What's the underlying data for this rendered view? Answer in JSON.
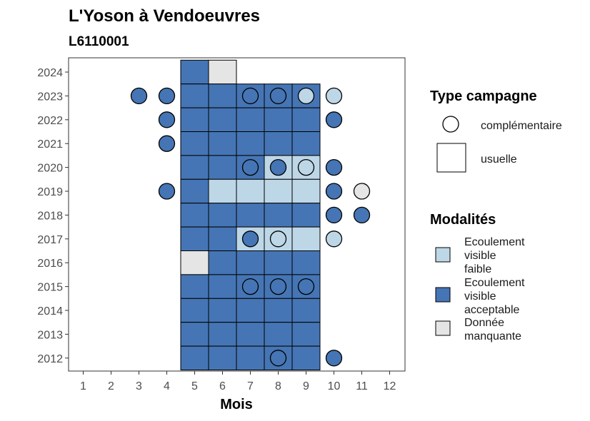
{
  "chart_data": {
    "type": "heatmap",
    "title": "L'Yoson à Vendoeuvres",
    "subtitle": "L6110001",
    "xlabel": "Mois",
    "ylabel": "",
    "x_ticks": [
      "1",
      "2",
      "3",
      "4",
      "5",
      "6",
      "7",
      "8",
      "9",
      "10",
      "11",
      "12"
    ],
    "y_ticks": [
      "2012",
      "2013",
      "2014",
      "2015",
      "2016",
      "2017",
      "2018",
      "2019",
      "2020",
      "2021",
      "2022",
      "2023",
      "2024"
    ],
    "colors": {
      "acceptable": "#4575b4",
      "faible": "#bdd7e7",
      "manquante": "#e5e5e5"
    },
    "legend_type": {
      "title": "Type campagne",
      "items": [
        {
          "shape": "circle",
          "label": "complémentaire"
        },
        {
          "shape": "square",
          "label": "usuelle"
        }
      ]
    },
    "legend_modalites": {
      "title": "Modalités",
      "items": [
        {
          "key": "faible",
          "label": "Ecoulement visible faible"
        },
        {
          "key": "acceptable",
          "label": "Ecoulement visible acceptable"
        },
        {
          "key": "manquante",
          "label": "Donnée manquante"
        }
      ]
    },
    "usuelle": [
      {
        "year": 2024,
        "month": 5,
        "modalite": "acceptable"
      },
      {
        "year": 2024,
        "month": 6,
        "modalite": "manquante"
      },
      {
        "year": 2023,
        "month": 5,
        "modalite": "acceptable"
      },
      {
        "year": 2023,
        "month": 6,
        "modalite": "acceptable"
      },
      {
        "year": 2023,
        "month": 7,
        "modalite": "acceptable"
      },
      {
        "year": 2023,
        "month": 8,
        "modalite": "acceptable"
      },
      {
        "year": 2023,
        "month": 9,
        "modalite": "acceptable"
      },
      {
        "year": 2022,
        "month": 5,
        "modalite": "acceptable"
      },
      {
        "year": 2022,
        "month": 6,
        "modalite": "acceptable"
      },
      {
        "year": 2022,
        "month": 7,
        "modalite": "acceptable"
      },
      {
        "year": 2022,
        "month": 8,
        "modalite": "acceptable"
      },
      {
        "year": 2022,
        "month": 9,
        "modalite": "acceptable"
      },
      {
        "year": 2021,
        "month": 5,
        "modalite": "acceptable"
      },
      {
        "year": 2021,
        "month": 6,
        "modalite": "acceptable"
      },
      {
        "year": 2021,
        "month": 7,
        "modalite": "acceptable"
      },
      {
        "year": 2021,
        "month": 8,
        "modalite": "acceptable"
      },
      {
        "year": 2021,
        "month": 9,
        "modalite": "acceptable"
      },
      {
        "year": 2020,
        "month": 5,
        "modalite": "acceptable"
      },
      {
        "year": 2020,
        "month": 6,
        "modalite": "acceptable"
      },
      {
        "year": 2020,
        "month": 7,
        "modalite": "acceptable"
      },
      {
        "year": 2020,
        "month": 8,
        "modalite": "faible"
      },
      {
        "year": 2020,
        "month": 9,
        "modalite": "faible"
      },
      {
        "year": 2019,
        "month": 5,
        "modalite": "acceptable"
      },
      {
        "year": 2019,
        "month": 6,
        "modalite": "faible"
      },
      {
        "year": 2019,
        "month": 7,
        "modalite": "faible"
      },
      {
        "year": 2019,
        "month": 8,
        "modalite": "faible"
      },
      {
        "year": 2019,
        "month": 9,
        "modalite": "faible"
      },
      {
        "year": 2018,
        "month": 5,
        "modalite": "acceptable"
      },
      {
        "year": 2018,
        "month": 6,
        "modalite": "acceptable"
      },
      {
        "year": 2018,
        "month": 7,
        "modalite": "acceptable"
      },
      {
        "year": 2018,
        "month": 8,
        "modalite": "acceptable"
      },
      {
        "year": 2018,
        "month": 9,
        "modalite": "acceptable"
      },
      {
        "year": 2017,
        "month": 5,
        "modalite": "acceptable"
      },
      {
        "year": 2017,
        "month": 6,
        "modalite": "acceptable"
      },
      {
        "year": 2017,
        "month": 7,
        "modalite": "faible"
      },
      {
        "year": 2017,
        "month": 8,
        "modalite": "faible"
      },
      {
        "year": 2017,
        "month": 9,
        "modalite": "faible"
      },
      {
        "year": 2016,
        "month": 5,
        "modalite": "manquante"
      },
      {
        "year": 2016,
        "month": 6,
        "modalite": "acceptable"
      },
      {
        "year": 2016,
        "month": 7,
        "modalite": "acceptable"
      },
      {
        "year": 2016,
        "month": 8,
        "modalite": "acceptable"
      },
      {
        "year": 2016,
        "month": 9,
        "modalite": "acceptable"
      },
      {
        "year": 2015,
        "month": 5,
        "modalite": "acceptable"
      },
      {
        "year": 2015,
        "month": 6,
        "modalite": "acceptable"
      },
      {
        "year": 2015,
        "month": 7,
        "modalite": "acceptable"
      },
      {
        "year": 2015,
        "month": 8,
        "modalite": "acceptable"
      },
      {
        "year": 2015,
        "month": 9,
        "modalite": "acceptable"
      },
      {
        "year": 2014,
        "month": 5,
        "modalite": "acceptable"
      },
      {
        "year": 2014,
        "month": 6,
        "modalite": "acceptable"
      },
      {
        "year": 2014,
        "month": 7,
        "modalite": "acceptable"
      },
      {
        "year": 2014,
        "month": 8,
        "modalite": "acceptable"
      },
      {
        "year": 2014,
        "month": 9,
        "modalite": "acceptable"
      },
      {
        "year": 2013,
        "month": 5,
        "modalite": "acceptable"
      },
      {
        "year": 2013,
        "month": 6,
        "modalite": "acceptable"
      },
      {
        "year": 2013,
        "month": 7,
        "modalite": "acceptable"
      },
      {
        "year": 2013,
        "month": 8,
        "modalite": "acceptable"
      },
      {
        "year": 2013,
        "month": 9,
        "modalite": "acceptable"
      },
      {
        "year": 2012,
        "month": 5,
        "modalite": "acceptable"
      },
      {
        "year": 2012,
        "month": 6,
        "modalite": "acceptable"
      },
      {
        "year": 2012,
        "month": 7,
        "modalite": "acceptable"
      },
      {
        "year": 2012,
        "month": 8,
        "modalite": "acceptable"
      },
      {
        "year": 2012,
        "month": 9,
        "modalite": "acceptable"
      }
    ],
    "complementaire": [
      {
        "year": 2023,
        "month": 3,
        "modalite": "acceptable"
      },
      {
        "year": 2023,
        "month": 4,
        "modalite": "acceptable"
      },
      {
        "year": 2023,
        "month": 7,
        "modalite": "acceptable"
      },
      {
        "year": 2023,
        "month": 8,
        "modalite": "acceptable"
      },
      {
        "year": 2023,
        "month": 9,
        "modalite": "faible"
      },
      {
        "year": 2023,
        "month": 10,
        "modalite": "faible"
      },
      {
        "year": 2022,
        "month": 4,
        "modalite": "acceptable"
      },
      {
        "year": 2022,
        "month": 10,
        "modalite": "acceptable"
      },
      {
        "year": 2021,
        "month": 4,
        "modalite": "acceptable"
      },
      {
        "year": 2020,
        "month": 7,
        "modalite": "acceptable"
      },
      {
        "year": 2020,
        "month": 8,
        "modalite": "acceptable"
      },
      {
        "year": 2020,
        "month": 9,
        "modalite": "faible"
      },
      {
        "year": 2020,
        "month": 10,
        "modalite": "acceptable"
      },
      {
        "year": 2019,
        "month": 4,
        "modalite": "acceptable"
      },
      {
        "year": 2019,
        "month": 10,
        "modalite": "acceptable"
      },
      {
        "year": 2019,
        "month": 11,
        "modalite": "manquante"
      },
      {
        "year": 2018,
        "month": 10,
        "modalite": "acceptable"
      },
      {
        "year": 2018,
        "month": 11,
        "modalite": "acceptable"
      },
      {
        "year": 2017,
        "month": 7,
        "modalite": "acceptable"
      },
      {
        "year": 2017,
        "month": 8,
        "modalite": "faible"
      },
      {
        "year": 2017,
        "month": 10,
        "modalite": "faible"
      },
      {
        "year": 2015,
        "month": 7,
        "modalite": "acceptable"
      },
      {
        "year": 2015,
        "month": 8,
        "modalite": "acceptable"
      },
      {
        "year": 2015,
        "month": 9,
        "modalite": "acceptable"
      },
      {
        "year": 2012,
        "month": 8,
        "modalite": "acceptable"
      },
      {
        "year": 2012,
        "month": 10,
        "modalite": "acceptable"
      }
    ]
  }
}
